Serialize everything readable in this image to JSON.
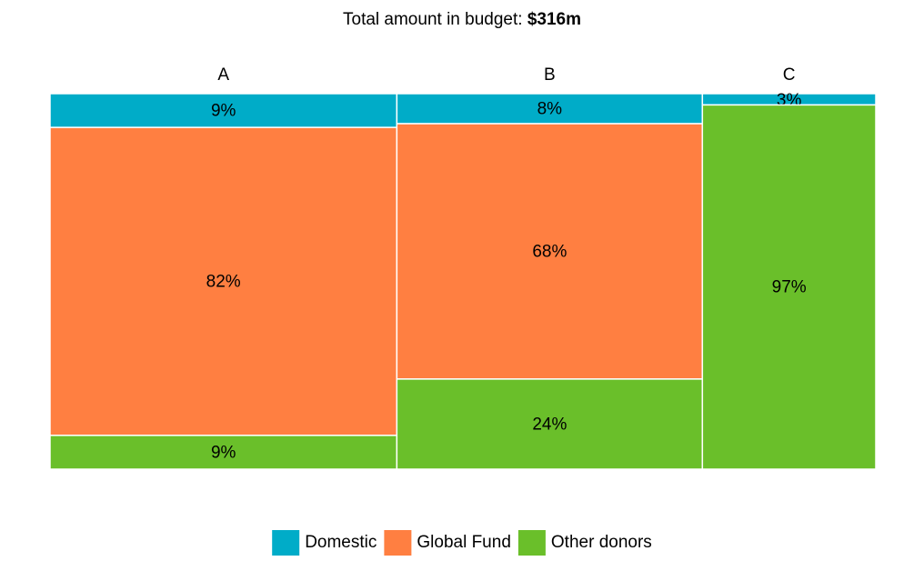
{
  "chart_data": {
    "type": "mekko",
    "title": "Total amount in budget:",
    "total": "$316m",
    "categories": [
      "A",
      "B",
      "C"
    ],
    "widths": [
      42,
      37,
      21
    ],
    "series": [
      {
        "name": "Domestic",
        "color": "#00acc8",
        "values": [
          9,
          8,
          3
        ],
        "value_labels": [
          "9%",
          "8%",
          "3%"
        ]
      },
      {
        "name": "Global Fund",
        "color": "#ff7f41",
        "values": [
          82,
          68,
          0
        ],
        "value_labels": [
          "82%",
          "68%",
          null
        ]
      },
      {
        "name": "Other donors",
        "color": "#6abf2a",
        "values": [
          9,
          24,
          97
        ],
        "value_labels": [
          "9%",
          "24%",
          "97%"
        ]
      }
    ],
    "legend": "bottom"
  }
}
